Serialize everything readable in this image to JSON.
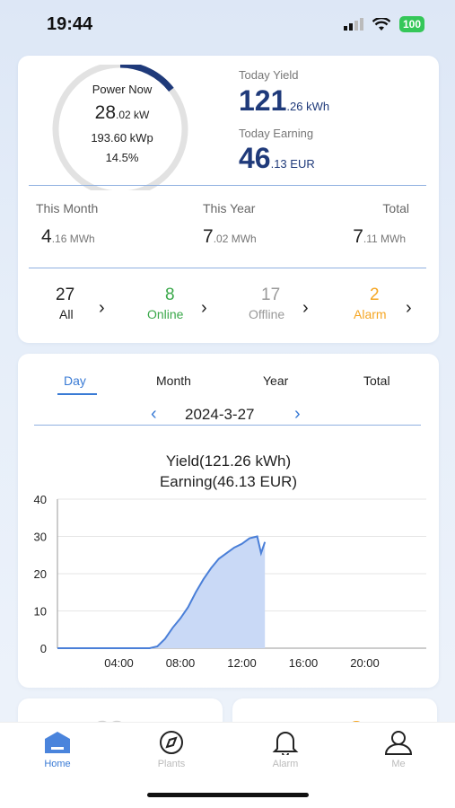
{
  "status_bar": {
    "time": "19:44",
    "battery": "100"
  },
  "overview": {
    "power_now_label": "Power Now",
    "power_now_int": "28",
    "power_now_dec": ".02 kW",
    "capacity": "193.60 kWp",
    "ratio": "14.5%",
    "ratio_fraction": 0.145,
    "today_yield_label": "Today Yield",
    "today_yield_int": "121",
    "today_yield_dec": ".26 kWh",
    "today_earning_label": "Today Earning",
    "today_earning_int": "46",
    "today_earning_dec": ".13 EUR"
  },
  "stats": [
    {
      "label": "This Month",
      "int": "4",
      "dec": ".16 MWh"
    },
    {
      "label": "This Year",
      "int": "7",
      "dec": ".02 MWh"
    },
    {
      "label": "Total",
      "int": "7",
      "dec": ".11 MWh"
    }
  ],
  "devices": [
    {
      "count": "27",
      "label": "All",
      "color": "#222222"
    },
    {
      "count": "8",
      "label": "Online",
      "color": "#3aa84a"
    },
    {
      "count": "17",
      "label": "Offline",
      "color": "#999999"
    },
    {
      "count": "2",
      "label": "Alarm",
      "color": "#f5a623"
    }
  ],
  "period_tabs": [
    "Day",
    "Month",
    "Year",
    "Total"
  ],
  "active_tab": "Day",
  "date": "2024-3-27",
  "chart_title_line1": "Yield(121.26 kWh)",
  "chart_title_line2": "Earning(46.13 EUR)",
  "chart_data": {
    "type": "area",
    "xlabel": "",
    "ylabel": "",
    "x_ticks": [
      "04:00",
      "08:00",
      "12:00",
      "16:00",
      "20:00"
    ],
    "y_ticks": [
      0,
      10,
      20,
      30,
      40
    ],
    "xlim": [
      0,
      24
    ],
    "ylim": [
      0,
      40
    ],
    "grid": true,
    "color": "#4a7fd8",
    "fill": "#c9d9f6",
    "x": [
      0,
      6.0,
      6.5,
      7.0,
      7.5,
      8.0,
      8.5,
      9.0,
      9.5,
      10.0,
      10.5,
      11.0,
      11.5,
      12.0,
      12.5,
      13.0,
      13.25,
      13.5
    ],
    "y": [
      0,
      0,
      0.5,
      2.5,
      5.5,
      8.0,
      11.0,
      15.0,
      18.5,
      21.5,
      24.0,
      25.5,
      27.0,
      28.0,
      29.5,
      30.0,
      25.5,
      28.5
    ]
  },
  "tab_bar": [
    {
      "label": "Home",
      "icon": "home-icon"
    },
    {
      "label": "Plants",
      "icon": "compass-icon"
    },
    {
      "label": "Alarm",
      "icon": "bell-icon"
    },
    {
      "label": "Me",
      "icon": "person-icon"
    }
  ]
}
